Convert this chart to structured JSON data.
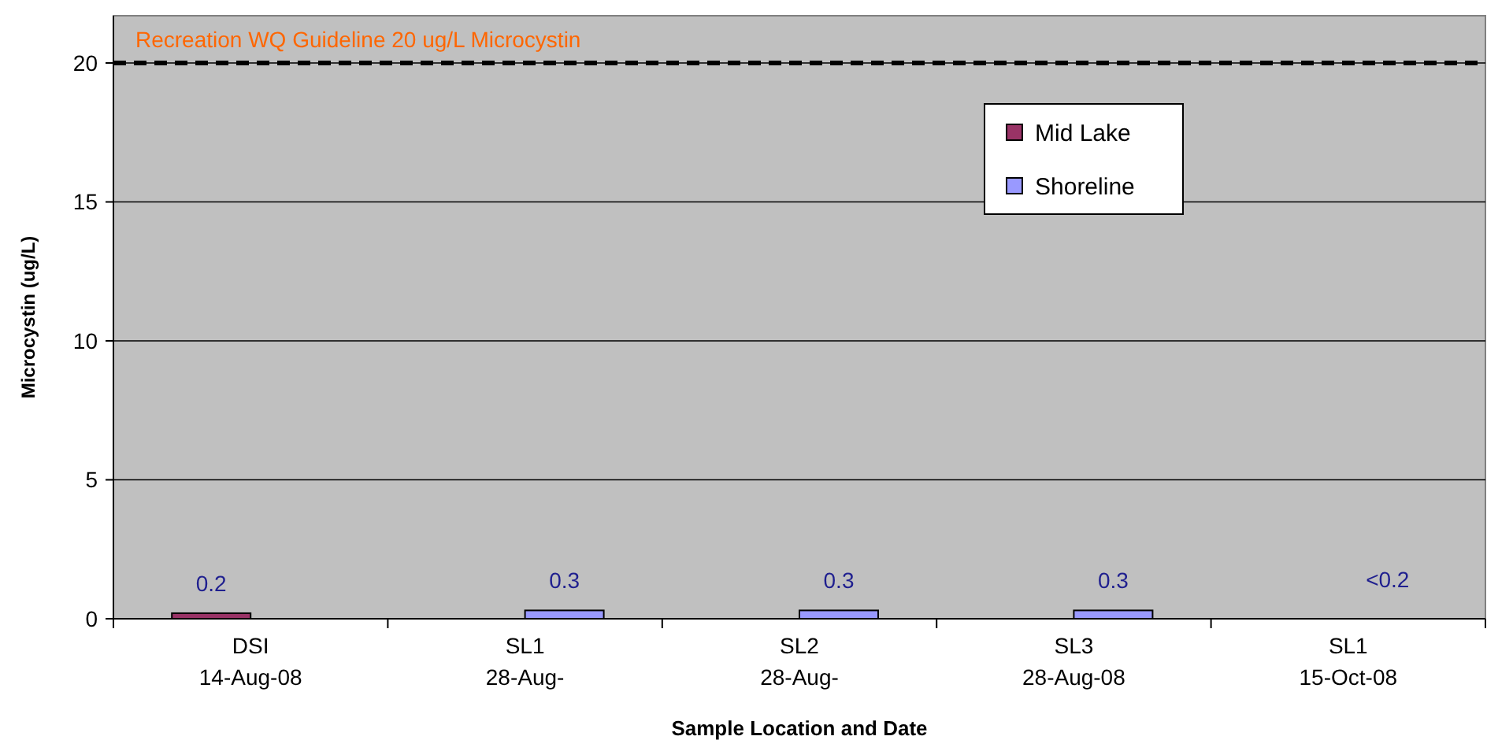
{
  "chart_data": {
    "type": "bar",
    "xlabel": "Sample Location and  Date",
    "ylabel": "Microcystin (ug/L)",
    "categories": [
      "DSI\n14-Aug-08",
      "SL1\n28-Aug-",
      "SL2\n28-Aug-",
      "SL3\n28-Aug-08",
      "SL1\n15-Oct-08"
    ],
    "series": [
      {
        "name": "Mid Lake",
        "color": "#993366",
        "values": [
          0.2,
          null,
          null,
          null,
          null
        ],
        "value_labels": [
          "0.2",
          null,
          null,
          null,
          null
        ]
      },
      {
        "name": "Shoreline",
        "color": "#9999ff",
        "values": [
          null,
          0.3,
          0.3,
          0.3,
          null
        ],
        "value_labels": [
          null,
          "0.3",
          "0.3",
          "0.3",
          "<0.2"
        ]
      }
    ],
    "ylim": [
      0,
      21.7
    ],
    "yticks": [
      0,
      5,
      10,
      15,
      20
    ],
    "grid": "y",
    "legend": "top right",
    "ref_lines": [
      {
        "axis": "y",
        "value": 20,
        "label": "Recreation WQ Guideline  20 ug/L Microcystin",
        "color": "#000000",
        "line_style": "dashed"
      }
    ]
  }
}
